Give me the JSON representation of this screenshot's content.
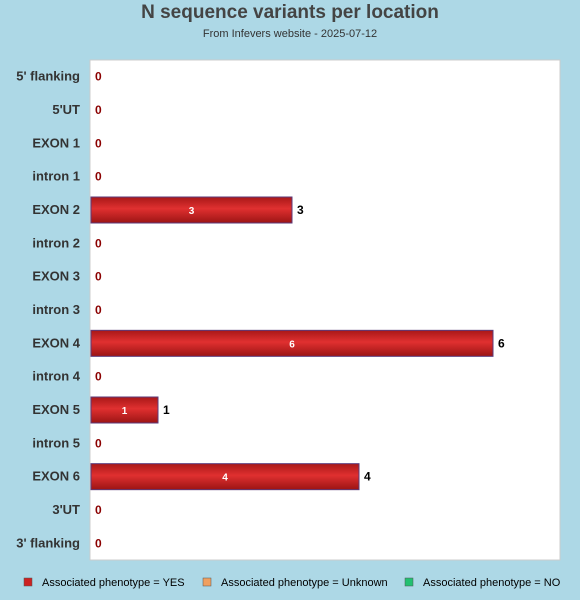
{
  "chart_data": {
    "type": "bar",
    "orientation": "horizontal",
    "title": "N sequence variants per location",
    "subtitle": "From Infevers website - 2025-07-12",
    "categories": [
      "5' flanking",
      "5'UT",
      "EXON 1",
      "intron 1",
      "EXON 2",
      "intron 2",
      "EXON 3",
      "intron 3",
      "EXON 4",
      "intron 4",
      "EXON 5",
      "intron 5",
      "EXON 6",
      "3'UT",
      "3' flanking"
    ],
    "values": [
      0,
      0,
      0,
      0,
      3,
      0,
      0,
      0,
      6,
      0,
      1,
      0,
      4,
      0,
      0
    ],
    "xlim": [
      0,
      7
    ],
    "grid": false,
    "legend": {
      "placement": "bottom",
      "entries": [
        {
          "label": "Associated phenotype = YES",
          "color": "#cc2222"
        },
        {
          "label": "Associated phenotype = Unknown",
          "color": "#f0a060"
        },
        {
          "label": "Associated phenotype = NO",
          "color": "#22c070"
        }
      ]
    },
    "bar_color": "#cc2222",
    "zero_label_color": "#8b0000"
  }
}
